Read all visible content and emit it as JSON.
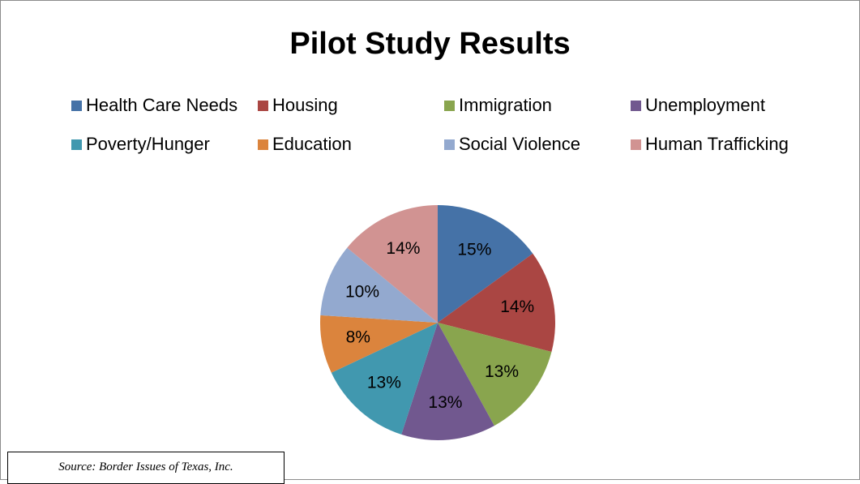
{
  "chart_data": {
    "type": "pie",
    "title": "Pilot Study Results",
    "categories": [
      "Health Care Needs",
      "Housing",
      "Immigration",
      "Unemployment",
      "Poverty/Hunger",
      "Education",
      "Social Violence",
      "Human Trafficking"
    ],
    "values": [
      15,
      14,
      13,
      13,
      13,
      8,
      10,
      14
    ],
    "data_labels": [
      "15%",
      "14%",
      "13%",
      "13%",
      "13%",
      "8%",
      "10%",
      "14%"
    ],
    "colors": [
      "#4572a7",
      "#aa4643",
      "#89a54e",
      "#71588f",
      "#4198af",
      "#db843d",
      "#93a9cf",
      "#d19392"
    ],
    "legend_position": "top",
    "start_angle": "12 o'clock, clockwise"
  },
  "source": {
    "text": "Source: Border Issues of Texas, Inc."
  }
}
